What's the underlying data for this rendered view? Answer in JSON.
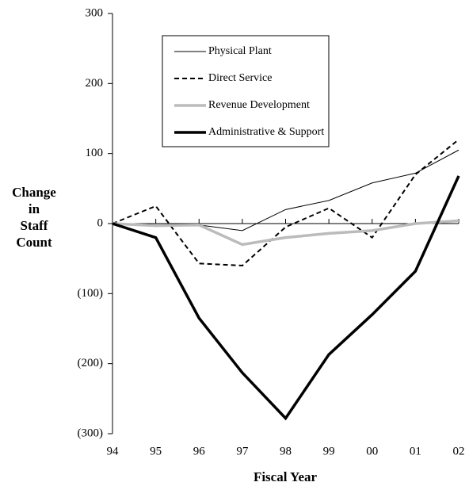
{
  "chart_data": {
    "type": "line",
    "xlabel": "Fiscal Year",
    "ylabel": "Change in Staff Count",
    "categories": [
      "94",
      "95",
      "96",
      "97",
      "98",
      "99",
      "00",
      "01",
      "02"
    ],
    "series": [
      {
        "name": "Physical Plant",
        "color": "#000000",
        "linewidth": 1,
        "linestyle": "solid",
        "values": [
          0,
          -2,
          -2,
          -10,
          20,
          33,
          58,
          72,
          105
        ]
      },
      {
        "name": "Direct Service",
        "color": "#000000",
        "linewidth": 2,
        "linestyle": "dashed",
        "values": [
          0,
          25,
          -57,
          -60,
          -5,
          22,
          -20,
          70,
          120
        ]
      },
      {
        "name": "Revenue Development",
        "color": "#bbbbbb",
        "linewidth": 3.5,
        "linestyle": "solid",
        "values": [
          0,
          -3,
          -2,
          -30,
          -20,
          -14,
          -10,
          0,
          4
        ]
      },
      {
        "name": "Administrative & Support",
        "color": "#000000",
        "linewidth": 3.5,
        "linestyle": "solid",
        "values": [
          0,
          -20,
          -135,
          -213,
          -278,
          -187,
          -130,
          -68,
          68
        ]
      }
    ],
    "ylim": [
      -300,
      300
    ],
    "yticks": [
      300,
      200,
      100,
      0,
      {
        "value": -100,
        "label": "(100)"
      },
      {
        "value": -200,
        "label": "(200)"
      },
      {
        "value": -300,
        "label": "(300)"
      }
    ],
    "grid": false,
    "legend": "upper-left"
  }
}
